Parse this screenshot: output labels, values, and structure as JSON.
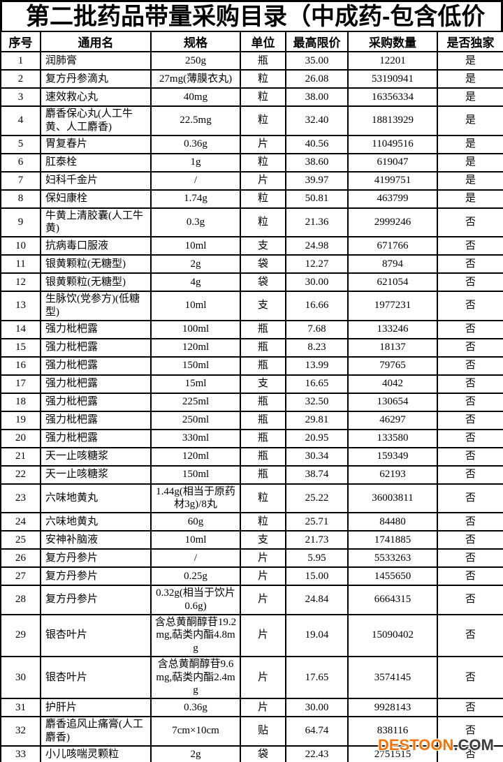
{
  "title": "第二批药品带量采购目录（中成药-包含低价",
  "watermark": {
    "brand": "DESTOON",
    "suffix": ".COM",
    "brand_color": "#F2750C",
    "suffix_color": "#3D3D3D"
  },
  "table": {
    "columns": [
      "序号",
      "通用名",
      "规格",
      "单位",
      "最高限价",
      "采购数量",
      "是否独家"
    ],
    "rows": [
      [
        "1",
        "润肺膏",
        "250g",
        "瓶",
        "35.00",
        "12201",
        "是"
      ],
      [
        "2",
        "复方丹参滴丸",
        "27mg(薄膜衣丸)",
        "粒",
        "26.08",
        "53190941",
        "是"
      ],
      [
        "3",
        "速效救心丸",
        "40mg",
        "粒",
        "38.00",
        "16356334",
        "是"
      ],
      [
        "4",
        "麝香保心丸(人工牛黄、人工麝香)",
        "22.5mg",
        "粒",
        "32.40",
        "18813929",
        "是"
      ],
      [
        "5",
        "胃复春片",
        "0.36g",
        "片",
        "40.56",
        "11049516",
        "是"
      ],
      [
        "6",
        "肛泰栓",
        "1g",
        "粒",
        "38.60",
        "619047",
        "是"
      ],
      [
        "7",
        "妇科千金片",
        "/",
        "片",
        "39.97",
        "4199751",
        "是"
      ],
      [
        "8",
        "保妇康栓",
        "1.74g",
        "粒",
        "50.81",
        "463799",
        "是"
      ],
      [
        "9",
        "牛黄上清胶囊(人工牛黄)",
        "0.3g",
        "粒",
        "21.36",
        "2999246",
        "否"
      ],
      [
        "10",
        "抗病毒口服液",
        "10ml",
        "支",
        "24.98",
        "671766",
        "否"
      ],
      [
        "11",
        "银黄颗粒(无糖型)",
        "2g",
        "袋",
        "12.27",
        "8794",
        "否"
      ],
      [
        "12",
        "银黄颗粒(无糖型)",
        "4g",
        "袋",
        "30.00",
        "621054",
        "否"
      ],
      [
        "13",
        "生脉饮(党参方)(低糖型)",
        "10ml",
        "支",
        "16.66",
        "1977231",
        "否"
      ],
      [
        "14",
        "强力枇杷露",
        "100ml",
        "瓶",
        "7.68",
        "133246",
        "否"
      ],
      [
        "15",
        "强力枇杷露",
        "120ml",
        "瓶",
        "8.23",
        "18137",
        "否"
      ],
      [
        "16",
        "强力枇杷露",
        "150ml",
        "瓶",
        "13.99",
        "79765",
        "否"
      ],
      [
        "17",
        "强力枇杷露",
        "15ml",
        "支",
        "16.65",
        "4042",
        "否"
      ],
      [
        "18",
        "强力枇杷露",
        "225ml",
        "瓶",
        "32.50",
        "130654",
        "否"
      ],
      [
        "19",
        "强力枇杷露",
        "250ml",
        "瓶",
        "29.81",
        "46297",
        "否"
      ],
      [
        "20",
        "强力枇杷露",
        "330ml",
        "瓶",
        "20.95",
        "133580",
        "否"
      ],
      [
        "21",
        "天一止咳糖浆",
        "120ml",
        "瓶",
        "30.34",
        "159349",
        "否"
      ],
      [
        "22",
        "天一止咳糖浆",
        "150ml",
        "瓶",
        "38.74",
        "62193",
        "否"
      ],
      [
        "23",
        "六味地黄丸",
        "1.44g(相当于原药材3g)/8丸",
        "粒",
        "25.22",
        "36003811",
        "否"
      ],
      [
        "24",
        "六味地黄丸",
        "60g",
        "粒",
        "25.71",
        "84480",
        "否"
      ],
      [
        "25",
        "安神补脑液",
        "10ml",
        "支",
        "21.73",
        "1741885",
        "否"
      ],
      [
        "26",
        "复方丹参片",
        "/",
        "片",
        "5.95",
        "5533263",
        "否"
      ],
      [
        "27",
        "复方丹参片",
        "0.25g",
        "片",
        "15.00",
        "1455650",
        "否"
      ],
      [
        "28",
        "复方丹参片",
        "0.32g(相当于饮片0.6g)",
        "片",
        "24.84",
        "6664315",
        "否"
      ],
      [
        "29",
        "银杏叶片",
        "含总黄酮醇苷19.2mg,萜类内酯4.8mg",
        "片",
        "19.04",
        "15090402",
        "否"
      ],
      [
        "30",
        "银杏叶片",
        "含总黄酮醇苷9.6mg,萜类内酯2.4mg",
        "片",
        "17.65",
        "3574145",
        "否"
      ],
      [
        "31",
        "护肝片",
        "0.36g",
        "片",
        "30.00",
        "9928143",
        "否"
      ],
      [
        "32",
        "麝香追风止痛膏(人工麝香)",
        "7cm×10cm",
        "贴",
        "64.74",
        "838116",
        "否"
      ],
      [
        "33",
        "小儿咳喘灵颗粒",
        "2g",
        "袋",
        "22.43",
        "2751515",
        "否"
      ]
    ]
  }
}
